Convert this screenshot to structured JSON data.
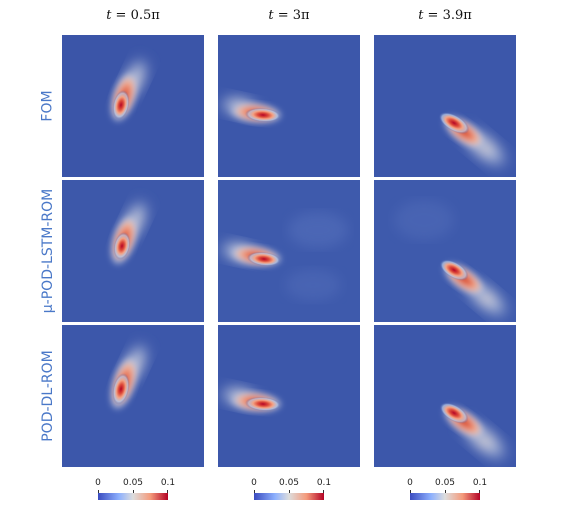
{
  "columns": [
    {
      "prefix": "t",
      "value": " = 0.5π"
    },
    {
      "prefix": "t",
      "value": " = 3π"
    },
    {
      "prefix": "t",
      "value": " = 3.9π"
    }
  ],
  "rows": [
    {
      "label": "FOM"
    },
    {
      "label": "μ-POD-LSTM-ROM"
    },
    {
      "label": "POD-DL-ROM"
    }
  ],
  "colorbar": {
    "ticks": [
      "0",
      "0.05",
      "0.1"
    ],
    "colors": [
      "#3b4cc0",
      "#8db0fe",
      "#dddddd",
      "#f49a7b",
      "#b40426"
    ]
  },
  "colors": {
    "background_field": "#3b55a8",
    "peak": "#b40426",
    "row_label": "#4a78c8"
  }
}
